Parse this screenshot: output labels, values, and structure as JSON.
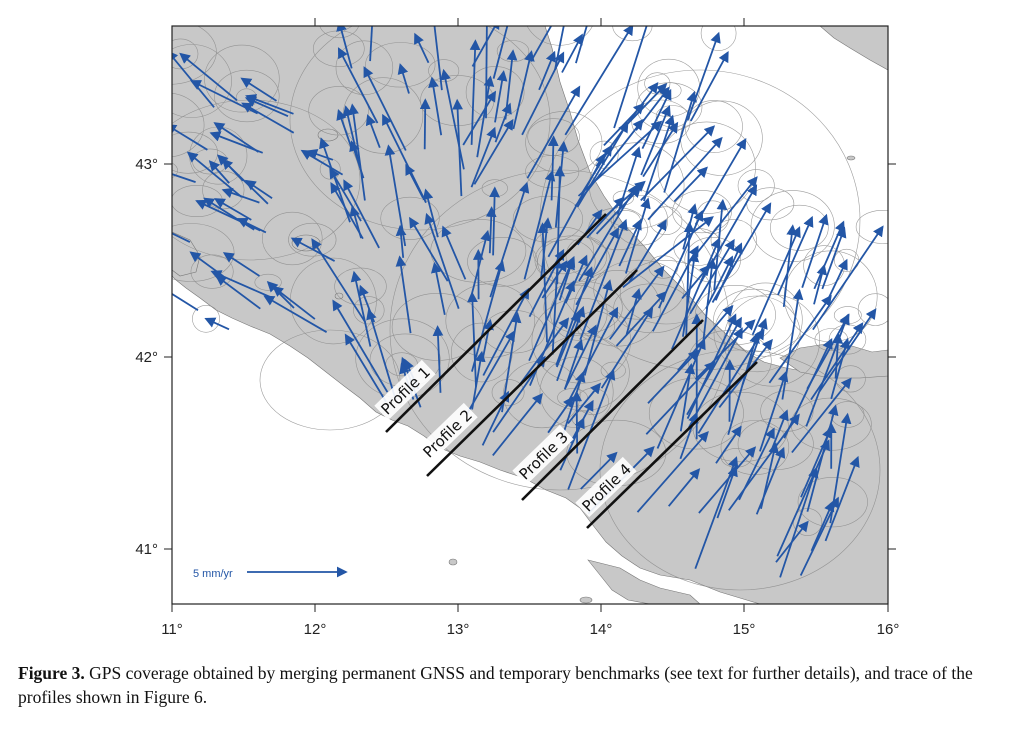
{
  "map": {
    "x_ticks": [
      "11°",
      "12°",
      "13°",
      "14°",
      "15°",
      "16°"
    ],
    "y_ticks": [
      "43°",
      "42°",
      "41°"
    ],
    "scale_label": "5 mm/yr",
    "profiles": [
      "Profile 1",
      "Profile 2",
      "Profile 3",
      "Profile 4"
    ],
    "colors": {
      "land": "#c8c8c8",
      "sea": "#ffffff",
      "vector": "#2356a6",
      "circle": "#8a8a8a",
      "profile": "#111111"
    }
  },
  "caption": {
    "label": "Figure 3.",
    "text": "GPS coverage obtained by merging permanent GNSS and temporary benchmarks (see text for further details), and trace of the profiles shown in Figure 6."
  }
}
